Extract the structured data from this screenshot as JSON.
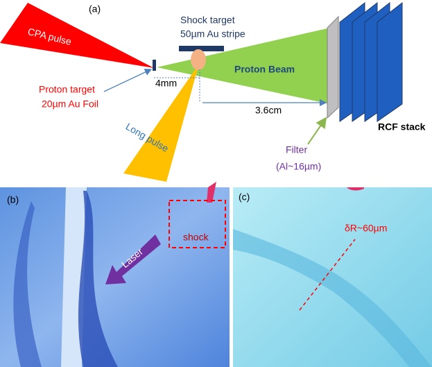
{
  "panel_a": {
    "label": "(a)",
    "cpa_pulse": "CPA pulse",
    "shock_target": [
      "Shock target",
      "50µm Au stripe"
    ],
    "proton_beam": "Proton Beam",
    "proton_target": [
      "Proton target",
      "20µm Au Foil"
    ],
    "distance_short": "4mm",
    "distance_long": "3.6cm",
    "rcf_stack": "RCF stack",
    "long_pulse": "Long pulse",
    "filter": [
      "Filter",
      "(Al~16µm)"
    ]
  },
  "panel_b": {
    "label": "(b)",
    "laser": "Laser",
    "shock": "shock"
  },
  "panel_c": {
    "label": "(c)",
    "delta_r": "δR~60µm"
  }
}
